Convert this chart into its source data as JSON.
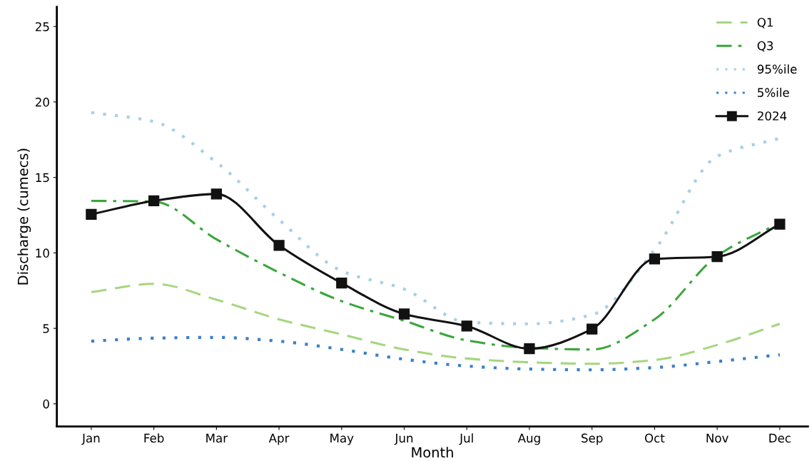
{
  "chart_data": {
    "type": "line",
    "xlabel": "Month",
    "ylabel": "Discharge (cumecs)",
    "categories": [
      "Jan",
      "Feb",
      "Mar",
      "Apr",
      "May",
      "Jun",
      "Jul",
      "Aug",
      "Sep",
      "Oct",
      "Nov",
      "Dec"
    ],
    "series": [
      {
        "name": "Q1",
        "color": "#a6d67f",
        "line_style": "dashed",
        "marker": "none",
        "values": [
          7.4,
          7.95,
          6.9,
          5.6,
          4.6,
          3.6,
          3.0,
          2.75,
          2.65,
          2.9,
          3.9,
          5.3
        ]
      },
      {
        "name": "Q3",
        "color": "#3aa63c",
        "line_style": "dashdot",
        "marker": "none",
        "values": [
          13.45,
          13.4,
          10.9,
          8.7,
          6.8,
          5.5,
          4.2,
          3.7,
          3.6,
          5.6,
          9.8,
          12.0
        ]
      },
      {
        "name": "95%ile",
        "color": "#a8d0e6",
        "line_style": "dotted",
        "marker": "none",
        "values": [
          19.3,
          18.7,
          16.0,
          12.2,
          8.8,
          7.6,
          5.4,
          5.3,
          5.9,
          10.2,
          16.4,
          17.6
        ]
      },
      {
        "name": "5%ile",
        "color": "#3c7fc8",
        "line_style": "dotted",
        "marker": "none",
        "values": [
          4.15,
          4.35,
          4.4,
          4.15,
          3.6,
          2.95,
          2.5,
          2.3,
          2.25,
          2.4,
          2.8,
          3.25
        ]
      },
      {
        "name": "2024",
        "color": "#111111",
        "line_style": "solid",
        "marker": "square",
        "values": [
          12.55,
          13.45,
          13.9,
          10.5,
          8.0,
          5.95,
          5.15,
          3.65,
          4.95,
          9.6,
          9.75,
          11.9
        ]
      }
    ],
    "ylim": [
      -1.5,
      26.3
    ],
    "yticks": [
      0,
      5,
      10,
      15,
      20,
      25
    ],
    "grid": false,
    "legend": "top right"
  }
}
